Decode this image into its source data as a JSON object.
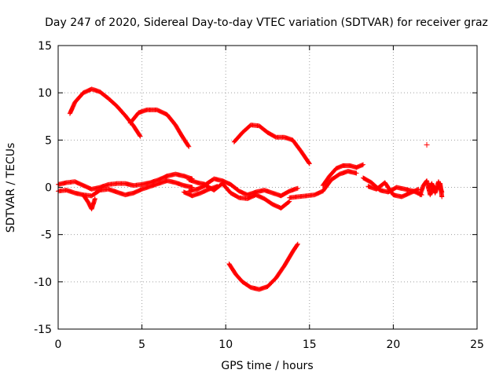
{
  "chart_data": {
    "type": "scatter",
    "title": "Day 247 of 2020, Sidereal Day-to-day VTEC variation (SDTVAR) for receiver graz",
    "xlabel": "GPS time / hours",
    "ylabel": "SDTVAR / TECUs",
    "xlim": [
      0,
      25
    ],
    "ylim": [
      -15,
      15
    ],
    "xticks": [
      "0",
      "5",
      "10",
      "15",
      "20",
      "25"
    ],
    "yticks": [
      "-15",
      "-10",
      "-5",
      "0",
      "5",
      "10",
      "15"
    ],
    "grid": true,
    "marker": "+",
    "colors": {
      "series": "#ff0000",
      "grid": "#a0a0a0",
      "axis": "#000000"
    },
    "series": [
      {
        "name": "arc-upper-1",
        "x": [
          0.7,
          1.0,
          1.5,
          2.0,
          2.5,
          3.0,
          3.5,
          4.0,
          4.5,
          4.9
        ],
        "y": [
          7.8,
          9.0,
          10.0,
          10.4,
          10.1,
          9.4,
          8.6,
          7.6,
          6.5,
          5.4
        ]
      },
      {
        "name": "arc-upper-2",
        "x": [
          4.3,
          4.8,
          5.3,
          5.9,
          6.5,
          7.0,
          7.4,
          7.8
        ],
        "y": [
          6.8,
          7.9,
          8.2,
          8.2,
          7.7,
          6.6,
          5.4,
          4.3
        ]
      },
      {
        "name": "arc-upper-3",
        "x": [
          10.5,
          11.0,
          11.5,
          12.0,
          12.5,
          13.0,
          13.5,
          14.0,
          14.5,
          15.0
        ],
        "y": [
          4.8,
          5.8,
          6.6,
          6.5,
          5.8,
          5.3,
          5.3,
          5.0,
          3.8,
          2.5
        ]
      },
      {
        "name": "arc-negative",
        "x": [
          10.2,
          10.6,
          11.0,
          11.5,
          12.0,
          12.5,
          13.0,
          13.5,
          14.0,
          14.3
        ],
        "y": [
          -8.1,
          -9.2,
          -10.0,
          -10.6,
          -10.8,
          -10.5,
          -9.6,
          -8.3,
          -6.8,
          -6.0
        ]
      },
      {
        "name": "base-1",
        "x": [
          0.0,
          0.5,
          1.0,
          1.5,
          2.0,
          2.5,
          3.0,
          3.5,
          4.0,
          4.5,
          5.0,
          5.5,
          6.0,
          6.5,
          7.0,
          7.5,
          8.0
        ],
        "y": [
          0.3,
          0.5,
          0.6,
          0.2,
          -0.2,
          0.0,
          0.3,
          0.4,
          0.4,
          0.2,
          0.3,
          0.5,
          0.8,
          1.2,
          1.4,
          1.2,
          0.9
        ]
      },
      {
        "name": "base-2",
        "x": [
          0.0,
          0.5,
          1.0,
          1.5,
          2.0,
          2.5,
          3.0,
          3.5,
          4.0,
          4.5,
          5.0,
          5.5,
          6.0,
          6.5,
          7.0,
          7.5,
          8.0
        ],
        "y": [
          -0.4,
          -0.3,
          -0.6,
          -0.8,
          -0.9,
          -0.3,
          -0.2,
          -0.5,
          -0.8,
          -0.6,
          -0.2,
          0.1,
          0.4,
          0.7,
          0.5,
          0.2,
          0.0
        ]
      },
      {
        "name": "base-3",
        "x": [
          1.5,
          1.8,
          2.0,
          2.2
        ],
        "y": [
          -0.8,
          -1.6,
          -2.3,
          -1.2
        ]
      },
      {
        "name": "base-4",
        "x": [
          7.8,
          8.3,
          8.8,
          9.3,
          9.8,
          10.3,
          10.8,
          11.3,
          11.8,
          12.3,
          12.8,
          13.3,
          13.8,
          14.3
        ],
        "y": [
          0.8,
          0.5,
          0.3,
          0.9,
          0.7,
          0.3,
          -0.4,
          -0.8,
          -0.5,
          -0.3,
          -0.6,
          -0.9,
          -0.4,
          -0.1
        ]
      },
      {
        "name": "base-5",
        "x": [
          7.8,
          8.3,
          8.8,
          9.3,
          9.8,
          10.3,
          10.8,
          11.3,
          11.8,
          12.3,
          12.8,
          13.3,
          13.8
        ],
        "y": [
          -0.4,
          -0.2,
          0.2,
          -0.3,
          0.4,
          -0.6,
          -1.1,
          -1.2,
          -0.8,
          -1.2,
          -1.8,
          -2.2,
          -1.5
        ]
      },
      {
        "name": "base-6",
        "x": [
          7.5,
          8.0,
          8.5,
          9.0,
          9.5
        ],
        "y": [
          -0.5,
          -0.9,
          -0.6,
          -0.2,
          0.1
        ]
      },
      {
        "name": "base-7",
        "x": [
          13.8,
          14.3,
          14.8,
          15.3,
          15.8,
          16.3,
          16.8,
          17.3,
          17.8
        ],
        "y": [
          -1.1,
          -1.0,
          -0.9,
          -0.8,
          -0.4,
          0.8,
          1.4,
          1.7,
          1.5
        ]
      },
      {
        "name": "base-8",
        "x": [
          15.8,
          16.2,
          16.6,
          17.0,
          17.4,
          17.8,
          18.2
        ],
        "y": [
          0.2,
          1.2,
          2.0,
          2.3,
          2.3,
          2.1,
          2.4
        ]
      },
      {
        "name": "base-9",
        "x": [
          18.2,
          18.7,
          19.2,
          19.7,
          20.2,
          20.7,
          21.2,
          21.7
        ],
        "y": [
          1.0,
          0.5,
          -0.3,
          -0.5,
          0.0,
          -0.2,
          -0.4,
          -0.8
        ]
      },
      {
        "name": "base-10",
        "x": [
          18.5,
          19.0,
          19.5,
          20.0,
          20.5,
          21.0,
          21.5
        ],
        "y": [
          0.1,
          -0.2,
          0.5,
          -0.8,
          -1.0,
          -0.6,
          -0.2
        ]
      },
      {
        "name": "base-11",
        "x": [
          21.6,
          21.8,
          22.0,
          22.2,
          22.4,
          22.6,
          22.8,
          22.9
        ],
        "y": [
          -0.8,
          0.2,
          0.7,
          -0.8,
          0.1,
          -0.2,
          0.4,
          -1.0
        ]
      },
      {
        "name": "base-12",
        "x": [
          22.1,
          22.3,
          22.5,
          22.7,
          22.9
        ],
        "y": [
          -0.1,
          0.4,
          -0.6,
          0.6,
          -0.5
        ]
      },
      {
        "name": "outlier",
        "x": [
          22.0
        ],
        "y": [
          4.5
        ]
      }
    ]
  }
}
